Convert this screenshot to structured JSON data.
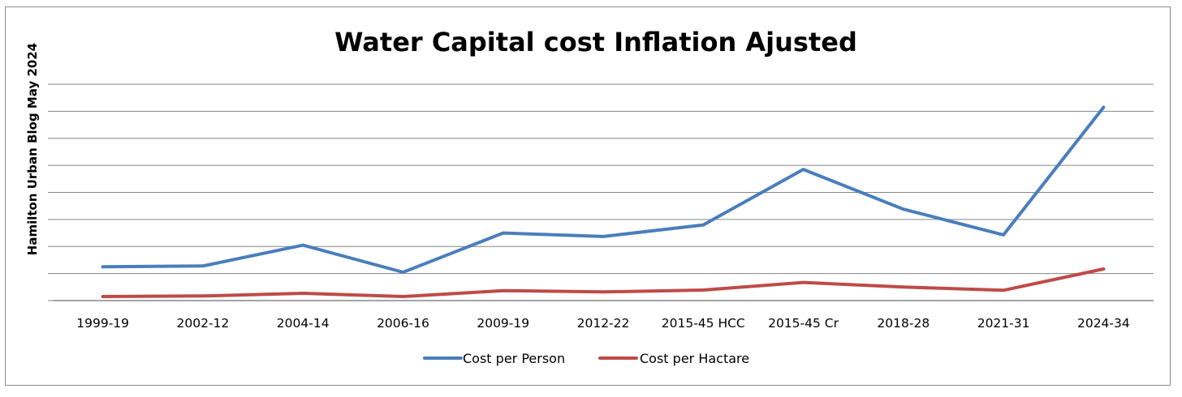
{
  "chart_data": {
    "type": "line",
    "title": "Water Capital cost Inflation Ajusted",
    "xlabel": "",
    "ylabel": "Hamilton Urban Blog May 2024",
    "categories": [
      "1999-19",
      "2002-12",
      "2004-14",
      "2006-16",
      "2009-19",
      "2012-22",
      "2015-45 HCC",
      "2015-45 Cr",
      "2018-28",
      "2021-31",
      "2024-34"
    ],
    "ylim": [
      0,
      8
    ],
    "y_tick_labels_shown": false,
    "grid": true,
    "legend_position": "bottom",
    "series": [
      {
        "name": "Cost per Person",
        "color": "#4a7ebb",
        "values": [
          1.25,
          1.28,
          2.05,
          1.05,
          2.5,
          2.37,
          2.8,
          4.85,
          3.38,
          2.43,
          7.15
        ]
      },
      {
        "name": "Cost per Hactare",
        "color": "#be4b48",
        "values": [
          0.15,
          0.17,
          0.27,
          0.15,
          0.37,
          0.32,
          0.39,
          0.67,
          0.5,
          0.38,
          1.17
        ]
      }
    ]
  }
}
